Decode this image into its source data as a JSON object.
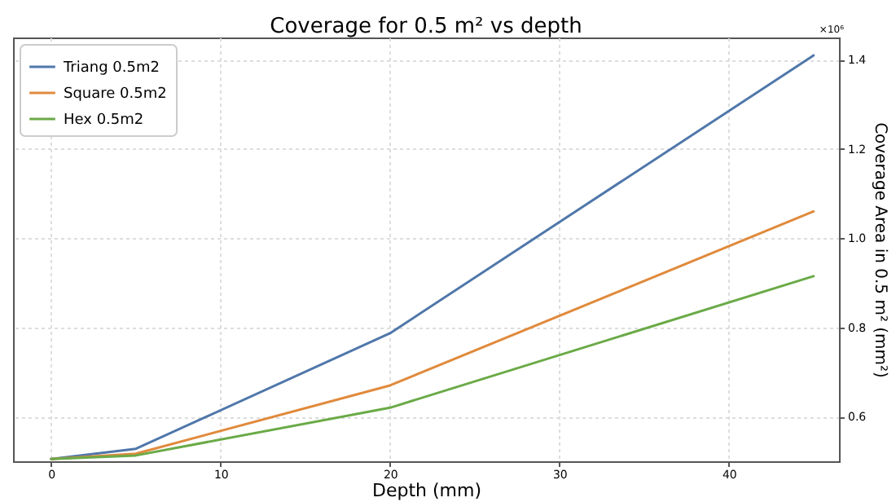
{
  "chart_data": {
    "type": "line",
    "title": "Coverage for 0.5 m² vs depth",
    "xlabel": "Depth (mm)",
    "ylabel": "Coverage Area in 0.5 m² (mm²)",
    "annotations": [
      "×10⁶"
    ],
    "x": [
      0,
      5,
      20,
      45
    ],
    "series": [
      {
        "name": "Triang 0.5m2",
        "color": "#4f77aa",
        "values": [
          0.505,
          0.528,
          0.787,
          1.41
        ]
      },
      {
        "name": "Square 0.5m2",
        "color": "#e08a3c",
        "values": [
          0.505,
          0.517,
          0.67,
          1.06
        ]
      },
      {
        "name": "Hex 0.5m2",
        "color": "#6aaa47",
        "values": [
          0.505,
          0.513,
          0.62,
          0.915
        ]
      }
    ],
    "xlim": [
      -2.25,
      46.5
    ],
    "xticks": [
      0,
      10,
      20,
      30,
      40
    ],
    "ylim": [
      0.5,
      1.45
    ],
    "yticks": [
      0.6,
      0.8,
      {
        "value": 1,
        "label": "1.0"
      },
      1.2,
      1.4
    ],
    "grid": true,
    "legend": "top left",
    "line_style": "solid",
    "marker": "none"
  }
}
